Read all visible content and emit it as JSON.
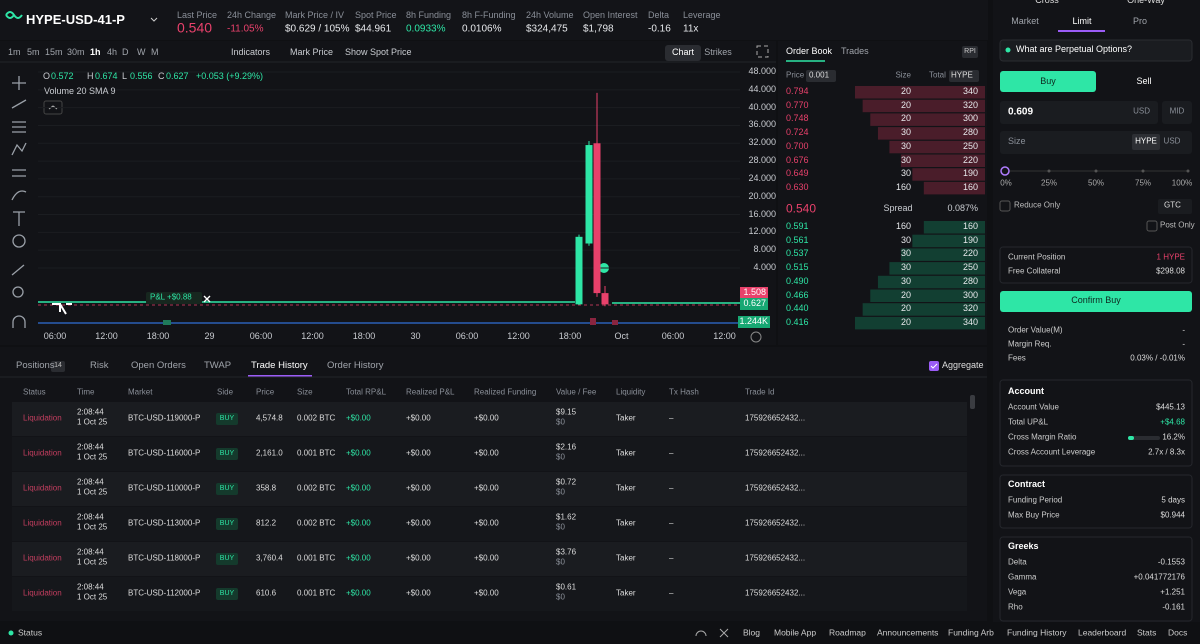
{
  "header": {
    "symbol": "HYPE-USD-41-P",
    "stats": [
      {
        "label": "Last Price",
        "value": "0.540",
        "color": "#e8416b"
      },
      {
        "label": "24h Change",
        "value": "-11.05%",
        "color": "#e8416b"
      },
      {
        "label": "Mark Price / IV",
        "value": "$0.629 / 105%"
      },
      {
        "label": "Spot Price",
        "value": "$44.961"
      },
      {
        "label": "8h Funding",
        "value": "0.0933%",
        "color": "#2ee6a6"
      },
      {
        "label": "8h F-Funding",
        "value": "0.0106%"
      },
      {
        "label": "24h Volume",
        "value": "$324,475"
      },
      {
        "label": "Open Interest",
        "value": "$1,798"
      },
      {
        "label": "Delta",
        "value": "-0.16"
      },
      {
        "label": "Leverage",
        "value": "11x"
      }
    ]
  },
  "toolbar": {
    "intervals": [
      "1m",
      "5m",
      "15m",
      "30m",
      "1h",
      "4h",
      "D",
      "W",
      "M"
    ],
    "indicators": "Indicators",
    "mark_price": "Mark Price",
    "show_spot_price": "Show Spot Price",
    "views": [
      "Chart",
      "Strikes"
    ]
  },
  "chart": {
    "ohlc": [
      {
        "key": "O",
        "value": "0.572"
      },
      {
        "key": "H",
        "value": "0.674"
      },
      {
        "key": "L",
        "value": "0.556"
      },
      {
        "key": "C",
        "value": "0.627"
      }
    ],
    "change": "+0.053 (+9.29%)",
    "volume_label": "Volume 20 SMA 9",
    "pnl_tag": "P&L +$0.88",
    "yticks": [
      {
        "value": 48,
        "label": "48.000"
      },
      {
        "value": 44,
        "label": "44.000"
      },
      {
        "value": 40,
        "label": "40.000"
      },
      {
        "value": 36,
        "label": "36.000"
      },
      {
        "value": 32,
        "label": "32.000"
      },
      {
        "value": 28,
        "label": "28.000"
      },
      {
        "value": 24,
        "label": "24.000"
      },
      {
        "value": 20,
        "label": "20.000"
      },
      {
        "value": 16,
        "label": "16.000"
      },
      {
        "value": 12,
        "label": "12.000"
      },
      {
        "value": 8,
        "label": "8.000"
      },
      {
        "value": 4,
        "label": "4.000"
      }
    ],
    "price_tags": [
      1.508,
      0.627
    ],
    "volume_tag": "1.244K",
    "xlabels": [
      "06:00",
      "12:00",
      "18:00",
      "29",
      "06:00",
      "12:00",
      "18:00",
      "30",
      "06:00",
      "12:00",
      "18:00",
      "Oct",
      "06:00",
      "12:00"
    ],
    "candles": [
      {
        "open": 0.6,
        "high": 11.5,
        "low": 0.55,
        "close": 11
      },
      {
        "open": 9.5,
        "high": 32.5,
        "low": 9,
        "close": 31.6
      },
      {
        "open": 32,
        "high": 43.3,
        "low": 1.2,
        "close": 1.5
      },
      {
        "open": 1.5,
        "high": 2.2,
        "low": 0.45,
        "close": 0.6
      }
    ]
  },
  "order_book": {
    "tabs": [
      "Order Book",
      "Trades"
    ],
    "badge": "RPI",
    "columns": {
      "price": "Price",
      "tick": "0.001",
      "size": "Size",
      "total": "Total",
      "unit": "HYPE"
    },
    "asks": [
      {
        "price": "0.794",
        "size": 20,
        "total": 340
      },
      {
        "price": "0.770",
        "size": 20,
        "total": 320
      },
      {
        "price": "0.748",
        "size": 20,
        "total": 300
      },
      {
        "price": "0.724",
        "size": 30,
        "total": 280
      },
      {
        "price": "0.700",
        "size": 30,
        "total": 250
      },
      {
        "price": "0.676",
        "size": 30,
        "total": 220
      },
      {
        "price": "0.649",
        "size": 30,
        "total": 190
      },
      {
        "price": "0.630",
        "size": 160,
        "total": 160
      }
    ],
    "mid": {
      "price": "0.540",
      "label": "Spread",
      "pct": "0.087%"
    },
    "bids": [
      {
        "price": "0.591",
        "size": 160,
        "total": 160
      },
      {
        "price": "0.561",
        "size": 30,
        "total": 190
      },
      {
        "price": "0.537",
        "size": 30,
        "total": 220
      },
      {
        "price": "0.515",
        "size": 30,
        "total": 250
      },
      {
        "price": "0.490",
        "size": 30,
        "total": 280
      },
      {
        "price": "0.466",
        "size": 20,
        "total": 300
      },
      {
        "price": "0.440",
        "size": 20,
        "total": 320
      },
      {
        "price": "0.416",
        "size": 20,
        "total": 340
      }
    ]
  },
  "bottom": {
    "tabs": [
      "Positions",
      "Risk",
      "Open Orders",
      "TWAP",
      "Trade History",
      "Order History"
    ],
    "positions_count": "14",
    "aggregate": "Aggregate",
    "columns": [
      "Status",
      "Time",
      "Market",
      "Side",
      "Price",
      "Size",
      "Total RP&L",
      "Realized P&L",
      "Realized Funding",
      "Value / Fee",
      "Liquidity",
      "Tx Hash",
      "Trade Id"
    ],
    "rows": [
      [
        "Liquidation",
        "2:08:44",
        "1 Oct 25",
        "BTC-USD-119000-P",
        "BUY",
        "4,574.8",
        "0.002 BTC",
        "+$0.00",
        "+$0.00",
        "+$0.00",
        "$9.15",
        "$0",
        "Taker",
        "–",
        "175926652432..."
      ],
      [
        "Liquidation",
        "2:08:44",
        "1 Oct 25",
        "BTC-USD-116000-P",
        "BUY",
        "2,161.0",
        "0.001 BTC",
        "+$0.00",
        "+$0.00",
        "+$0.00",
        "$2.16",
        "$0",
        "Taker",
        "–",
        "175926652432..."
      ],
      [
        "Liquidation",
        "2:08:44",
        "1 Oct 25",
        "BTC-USD-110000-P",
        "BUY",
        "358.8",
        "0.002 BTC",
        "+$0.00",
        "+$0.00",
        "+$0.00",
        "$0.72",
        "$0",
        "Taker",
        "–",
        "175926652432..."
      ],
      [
        "Liquidation",
        "2:08:44",
        "1 Oct 25",
        "BTC-USD-113000-P",
        "BUY",
        "812.2",
        "0.002 BTC",
        "+$0.00",
        "+$0.00",
        "+$0.00",
        "$1.62",
        "$0",
        "Taker",
        "–",
        "175926652432..."
      ],
      [
        "Liquidation",
        "2:08:44",
        "1 Oct 25",
        "BTC-USD-118000-P",
        "BUY",
        "3,760.4",
        "0.001 BTC",
        "+$0.00",
        "+$0.00",
        "+$0.00",
        "$3.76",
        "$0",
        "Taker",
        "–",
        "175926652432..."
      ],
      [
        "Liquidation",
        "2:08:44",
        "1 Oct 25",
        "BTC-USD-112000-P",
        "BUY",
        "610.6",
        "0.001 BTC",
        "+$0.00",
        "+$0.00",
        "+$0.00",
        "$0.61",
        "$0",
        "Taker",
        "–",
        "175926652432..."
      ]
    ]
  },
  "order_form": {
    "mode": [
      "Cross",
      "One-Way"
    ],
    "tabs": [
      "Market",
      "Limit",
      "Pro"
    ],
    "banner": "What are Perpetual Options?",
    "sides": [
      "Buy",
      "Sell"
    ],
    "price": {
      "value": "0.609",
      "unit": "USD",
      "mid": "MID"
    },
    "size": {
      "label": "Size",
      "units": [
        "HYPE",
        "USD"
      ]
    },
    "slider": [
      "0%",
      "25%",
      "50%",
      "75%",
      "100%"
    ],
    "reduce_only": "Reduce Only",
    "tif": "GTC",
    "post_only": "Post Only",
    "position": [
      [
        "Current Position",
        "1 HYPE"
      ],
      [
        "Free Collateral",
        "$298.08"
      ]
    ],
    "confirm": "Confirm Buy",
    "summary": [
      [
        "Order Value(M)",
        "-"
      ],
      [
        "Margin Req.",
        "-"
      ],
      [
        "Fees",
        "0.03% / -0.01%"
      ]
    ],
    "account": {
      "title": "Account",
      "rows": [
        [
          "Account Value",
          "$445.13"
        ],
        [
          "Total UP&L",
          "+$4.68"
        ],
        [
          "Cross Margin Ratio",
          "16.2%"
        ],
        [
          "Cross Account Leverage",
          "2.7x / 8.3x"
        ]
      ]
    },
    "contract": {
      "title": "Contract",
      "rows": [
        [
          "Funding Period",
          "5 days"
        ],
        [
          "Max Buy Price",
          "$0.944"
        ]
      ]
    },
    "greeks": {
      "title": "Greeks",
      "rows": [
        [
          "Delta",
          "-0.1553"
        ],
        [
          "Gamma",
          "+0.041772176"
        ],
        [
          "Vega",
          "+1.251"
        ],
        [
          "Rho",
          "-0.161"
        ]
      ]
    }
  },
  "footer": {
    "status": "Status",
    "links": [
      "Blog",
      "Mobile App",
      "Roadmap",
      "Announcements",
      "Funding Arb",
      "Funding History",
      "Leaderboard",
      "Stats",
      "Docs"
    ]
  }
}
